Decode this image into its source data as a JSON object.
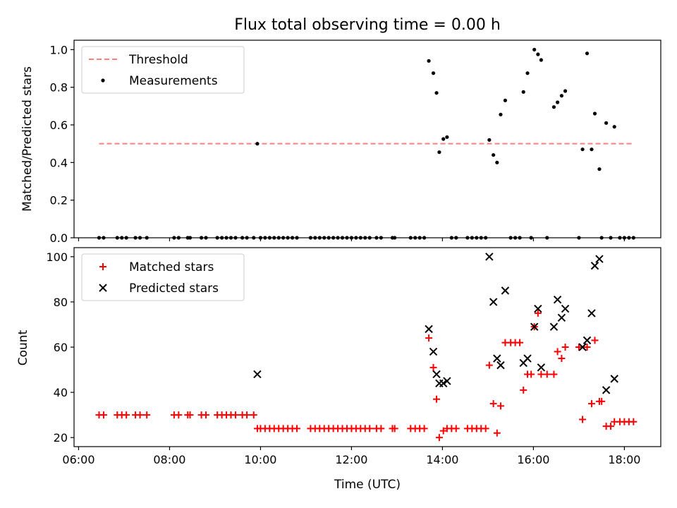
{
  "figure_title": "Flux total observing time = 0.00 h",
  "chart_data": [
    {
      "type": "scatter",
      "panel": "top",
      "ylabel": "Matched/Predicted stars",
      "xlabel": "",
      "xlim": [
        5.9,
        18.8
      ],
      "ylim": [
        0,
        1.05
      ],
      "yticks": [
        0.0,
        0.2,
        0.4,
        0.6,
        0.8,
        1.0
      ],
      "ytick_labels": [
        "0.0",
        "0.2",
        "0.4",
        "0.6",
        "0.8",
        "1.0"
      ],
      "legend_position": "upper-left",
      "threshold": {
        "name": "Threshold",
        "value": 0.5,
        "x_range": [
          6.45,
          18.2
        ],
        "color": "#ff7f7f"
      },
      "series": [
        {
          "name": "Measurements",
          "color": "#000000",
          "marker": "dot",
          "points": [
            [
              6.45,
              0
            ],
            [
              6.55,
              0
            ],
            [
              6.85,
              0
            ],
            [
              6.95,
              0
            ],
            [
              7.05,
              0
            ],
            [
              7.25,
              0
            ],
            [
              7.35,
              0
            ],
            [
              7.5,
              0
            ],
            [
              8.1,
              0
            ],
            [
              8.2,
              0
            ],
            [
              8.4,
              0
            ],
            [
              8.45,
              0
            ],
            [
              8.7,
              0
            ],
            [
              8.8,
              0
            ],
            [
              9.05,
              0
            ],
            [
              9.15,
              0
            ],
            [
              9.25,
              0
            ],
            [
              9.35,
              0
            ],
            [
              9.45,
              0
            ],
            [
              9.6,
              0
            ],
            [
              9.7,
              0
            ],
            [
              9.85,
              0
            ],
            [
              9.93,
              0.5
            ],
            [
              10.0,
              0
            ],
            [
              10.1,
              0
            ],
            [
              10.2,
              0
            ],
            [
              10.3,
              0
            ],
            [
              10.4,
              0
            ],
            [
              10.5,
              0
            ],
            [
              10.6,
              0
            ],
            [
              10.7,
              0
            ],
            [
              10.8,
              0
            ],
            [
              11.1,
              0
            ],
            [
              11.2,
              0
            ],
            [
              11.3,
              0
            ],
            [
              11.4,
              0
            ],
            [
              11.5,
              0
            ],
            [
              11.6,
              0
            ],
            [
              11.7,
              0
            ],
            [
              11.8,
              0
            ],
            [
              11.9,
              0
            ],
            [
              12.0,
              0
            ],
            [
              12.1,
              0
            ],
            [
              12.2,
              0
            ],
            [
              12.3,
              0
            ],
            [
              12.4,
              0
            ],
            [
              12.55,
              0
            ],
            [
              12.65,
              0
            ],
            [
              12.9,
              0
            ],
            [
              12.95,
              0
            ],
            [
              13.3,
              0
            ],
            [
              13.4,
              0
            ],
            [
              13.5,
              0
            ],
            [
              13.6,
              0
            ],
            [
              13.7,
              0.94
            ],
            [
              13.8,
              0.875
            ],
            [
              13.87,
              0.77
            ],
            [
              13.93,
              0.455
            ],
            [
              14.02,
              0.525
            ],
            [
              14.1,
              0.535
            ],
            [
              14.2,
              0
            ],
            [
              14.3,
              0
            ],
            [
              14.55,
              0
            ],
            [
              14.65,
              0
            ],
            [
              14.75,
              0
            ],
            [
              14.85,
              0
            ],
            [
              14.95,
              0
            ],
            [
              15.03,
              0.52
            ],
            [
              15.12,
              0.44
            ],
            [
              15.2,
              0.4
            ],
            [
              15.28,
              0.655
            ],
            [
              15.38,
              0.73
            ],
            [
              15.5,
              0
            ],
            [
              15.6,
              0
            ],
            [
              15.7,
              0
            ],
            [
              15.78,
              0.775
            ],
            [
              15.87,
              0.875
            ],
            [
              15.95,
              0
            ],
            [
              16.02,
              1.0
            ],
            [
              16.1,
              0.975
            ],
            [
              16.17,
              0.945
            ],
            [
              16.3,
              0
            ],
            [
              16.45,
              0.695
            ],
            [
              16.53,
              0.72
            ],
            [
              16.62,
              0.755
            ],
            [
              16.7,
              0.78
            ],
            [
              17.0,
              0
            ],
            [
              17.08,
              0.47
            ],
            [
              17.18,
              0.98
            ],
            [
              17.28,
              0.47
            ],
            [
              17.35,
              0.66
            ],
            [
              17.45,
              0.365
            ],
            [
              17.5,
              0
            ],
            [
              17.6,
              0.61
            ],
            [
              17.7,
              0
            ],
            [
              17.78,
              0.59
            ],
            [
              17.9,
              0
            ],
            [
              18.0,
              0
            ],
            [
              18.1,
              0
            ],
            [
              18.2,
              0
            ]
          ]
        }
      ]
    },
    {
      "type": "scatter",
      "panel": "bottom",
      "xlabel": "Time (UTC)",
      "ylabel": "Count",
      "xlim": [
        5.9,
        18.8
      ],
      "ylim": [
        16,
        104
      ],
      "xticks": [
        6,
        8,
        10,
        12,
        14,
        16,
        18
      ],
      "xtick_labels": [
        "06:00",
        "08:00",
        "10:00",
        "12:00",
        "14:00",
        "16:00",
        "18:00"
      ],
      "yticks": [
        20,
        40,
        60,
        80,
        100
      ],
      "ytick_labels": [
        "20",
        "40",
        "60",
        "80",
        "100"
      ],
      "legend_position": "upper-left",
      "series": [
        {
          "name": "Matched stars",
          "color": "#ff0000",
          "marker": "plus",
          "points": [
            [
              6.45,
              30
            ],
            [
              6.55,
              30
            ],
            [
              6.85,
              30
            ],
            [
              6.95,
              30
            ],
            [
              7.05,
              30
            ],
            [
              7.25,
              30
            ],
            [
              7.35,
              30
            ],
            [
              7.5,
              30
            ],
            [
              8.1,
              30
            ],
            [
              8.2,
              30
            ],
            [
              8.4,
              30
            ],
            [
              8.45,
              30
            ],
            [
              8.7,
              30
            ],
            [
              8.8,
              30
            ],
            [
              9.05,
              30
            ],
            [
              9.15,
              30
            ],
            [
              9.25,
              30
            ],
            [
              9.35,
              30
            ],
            [
              9.45,
              30
            ],
            [
              9.6,
              30
            ],
            [
              9.7,
              30
            ],
            [
              9.85,
              30
            ],
            [
              9.93,
              24
            ],
            [
              10.0,
              24
            ],
            [
              10.1,
              24
            ],
            [
              10.2,
              24
            ],
            [
              10.3,
              24
            ],
            [
              10.4,
              24
            ],
            [
              10.5,
              24
            ],
            [
              10.6,
              24
            ],
            [
              10.7,
              24
            ],
            [
              10.8,
              24
            ],
            [
              11.1,
              24
            ],
            [
              11.2,
              24
            ],
            [
              11.3,
              24
            ],
            [
              11.4,
              24
            ],
            [
              11.5,
              24
            ],
            [
              11.6,
              24
            ],
            [
              11.7,
              24
            ],
            [
              11.8,
              24
            ],
            [
              11.9,
              24
            ],
            [
              12.0,
              24
            ],
            [
              12.1,
              24
            ],
            [
              12.2,
              24
            ],
            [
              12.3,
              24
            ],
            [
              12.4,
              24
            ],
            [
              12.55,
              24
            ],
            [
              12.65,
              24
            ],
            [
              12.9,
              24
            ],
            [
              12.95,
              24
            ],
            [
              13.3,
              24
            ],
            [
              13.4,
              24
            ],
            [
              13.5,
              24
            ],
            [
              13.6,
              24
            ],
            [
              13.7,
              64
            ],
            [
              13.8,
              51
            ],
            [
              13.87,
              37
            ],
            [
              13.93,
              20
            ],
            [
              14.02,
              23
            ],
            [
              14.1,
              24
            ],
            [
              14.2,
              24
            ],
            [
              14.3,
              24
            ],
            [
              14.55,
              24
            ],
            [
              14.65,
              24
            ],
            [
              14.75,
              24
            ],
            [
              14.85,
              24
            ],
            [
              14.95,
              24
            ],
            [
              15.03,
              52
            ],
            [
              15.12,
              35
            ],
            [
              15.2,
              22
            ],
            [
              15.28,
              34
            ],
            [
              15.38,
              62
            ],
            [
              15.5,
              62
            ],
            [
              15.6,
              62
            ],
            [
              15.7,
              62
            ],
            [
              15.78,
              41
            ],
            [
              15.87,
              48
            ],
            [
              15.95,
              48
            ],
            [
              16.02,
              69
            ],
            [
              16.1,
              75
            ],
            [
              16.17,
              48
            ],
            [
              16.3,
              48
            ],
            [
              16.45,
              48
            ],
            [
              16.53,
              58
            ],
            [
              16.62,
              55
            ],
            [
              16.7,
              60
            ],
            [
              17.0,
              60
            ],
            [
              17.08,
              28
            ],
            [
              17.18,
              60
            ],
            [
              17.28,
              35
            ],
            [
              17.35,
              63
            ],
            [
              17.45,
              36
            ],
            [
              17.5,
              36
            ],
            [
              17.6,
              25
            ],
            [
              17.7,
              25
            ],
            [
              17.78,
              27
            ],
            [
              17.9,
              27
            ],
            [
              18.0,
              27
            ],
            [
              18.1,
              27
            ],
            [
              18.2,
              27
            ]
          ]
        },
        {
          "name": "Predicted stars",
          "color": "#000000",
          "marker": "x",
          "points": [
            [
              9.93,
              48
            ],
            [
              13.7,
              68
            ],
            [
              13.8,
              58
            ],
            [
              13.87,
              48
            ],
            [
              13.93,
              44
            ],
            [
              14.02,
              44
            ],
            [
              14.1,
              45
            ],
            [
              15.03,
              100
            ],
            [
              15.12,
              80
            ],
            [
              15.2,
              55
            ],
            [
              15.28,
              52
            ],
            [
              15.38,
              85
            ],
            [
              15.78,
              53
            ],
            [
              15.87,
              55
            ],
            [
              16.02,
              69
            ],
            [
              16.1,
              77
            ],
            [
              16.17,
              51
            ],
            [
              16.45,
              69
            ],
            [
              16.53,
              81
            ],
            [
              16.62,
              73
            ],
            [
              16.7,
              77
            ],
            [
              17.08,
              60
            ],
            [
              17.18,
              63
            ],
            [
              17.28,
              75
            ],
            [
              17.35,
              96
            ],
            [
              17.45,
              99
            ],
            [
              17.6,
              41
            ],
            [
              17.78,
              46
            ]
          ]
        }
      ]
    }
  ]
}
